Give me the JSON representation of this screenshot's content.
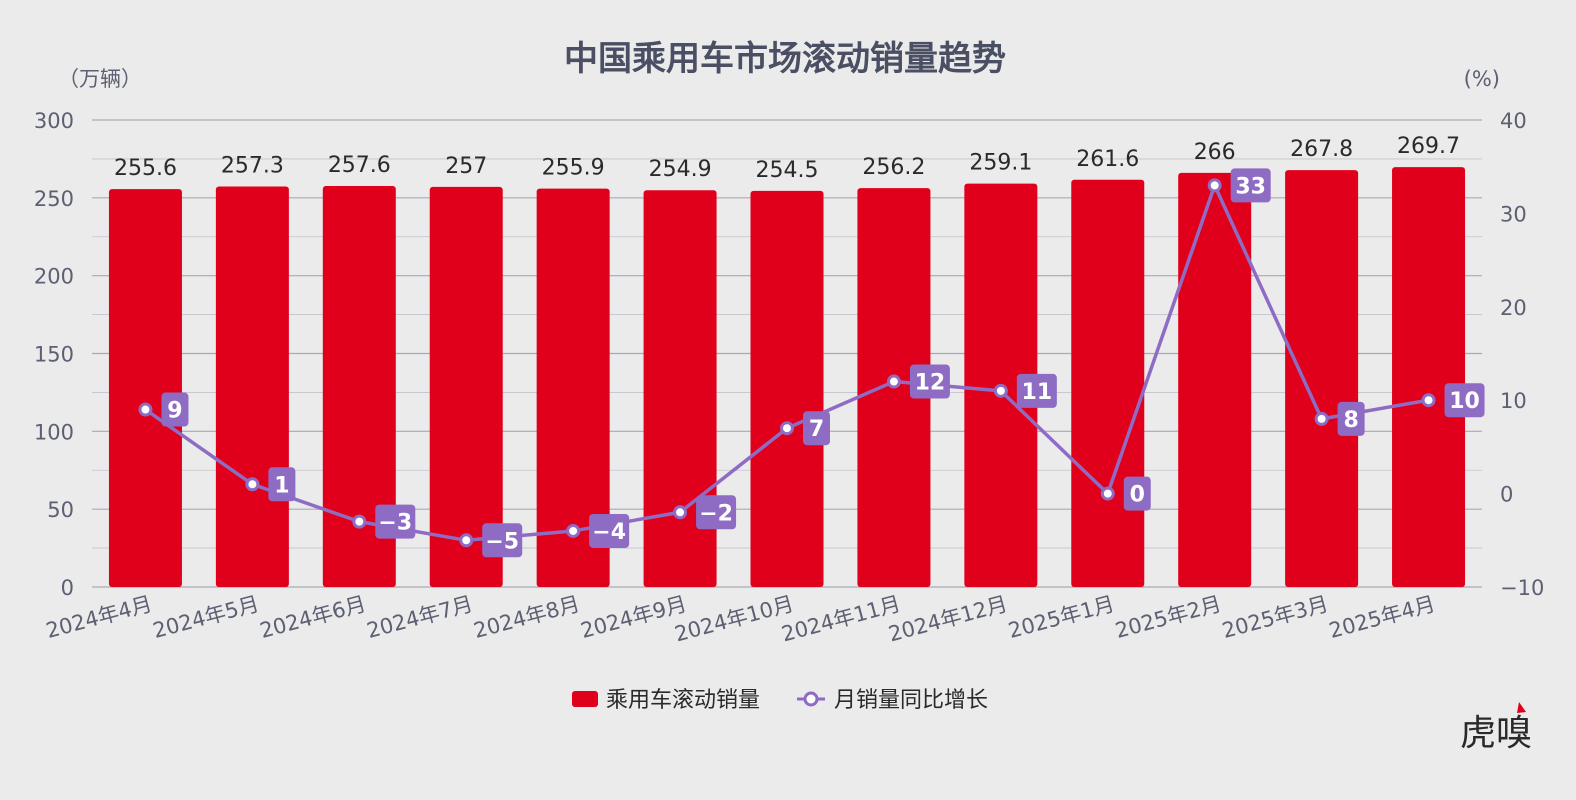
{
  "colors": {
    "background": "#ebebeb",
    "bar": "#e0001b",
    "line": "#8f6cc4",
    "badge": "#8f6cc4",
    "grid": "#a9a9b8",
    "axis_text": "#5c6072",
    "title_text": "#4a4f63",
    "logo_accent": "#e0001b"
  },
  "logo": {
    "text": "虎嗅"
  },
  "chart_data": {
    "type": "bar",
    "title": "中国乘用车市场滚动销量趋势",
    "left_unit": "（万辆）",
    "right_unit": "(%)",
    "categories": [
      "2024年4月",
      "2024年5月",
      "2024年6月",
      "2024年7月",
      "2024年8月",
      "2024年9月",
      "2024年10月",
      "2024年11月",
      "2024年12月",
      "2025年1月",
      "2025年2月",
      "2025年3月",
      "2025年4月"
    ],
    "series": [
      {
        "name": "乘用车滚动销量",
        "type": "bar",
        "axis": "left",
        "values": [
          255.6,
          257.3,
          257.6,
          257,
          255.9,
          254.9,
          254.5,
          256.2,
          259.1,
          261.6,
          266,
          267.8,
          269.7
        ]
      },
      {
        "name": "月销量同比增长",
        "type": "line",
        "axis": "right",
        "values": [
          9,
          1,
          -3,
          -5,
          -4,
          -2,
          7,
          12,
          11,
          0,
          33,
          8,
          10
        ]
      }
    ],
    "left_axis": {
      "ylim": [
        0,
        300
      ],
      "ticks": [
        0,
        50,
        100,
        150,
        200,
        250,
        300
      ]
    },
    "right_axis": {
      "ylim": [
        -10,
        40
      ],
      "ticks": [
        -10,
        0,
        10,
        20,
        30,
        40
      ]
    },
    "grid": true,
    "legend": "bottom-center",
    "data_labels": true
  }
}
